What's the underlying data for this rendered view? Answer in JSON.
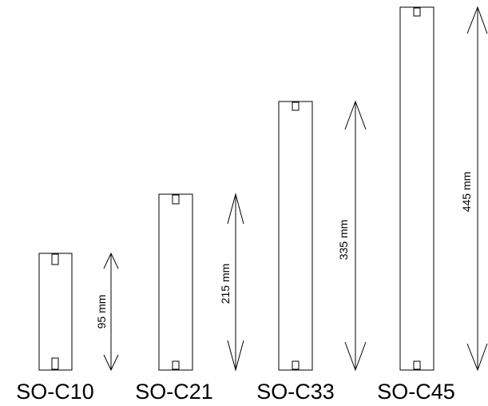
{
  "modules": [
    {
      "name": "SO-C10",
      "height_label": "95 mm"
    },
    {
      "name": "SO-C21",
      "height_label": "215 mm"
    },
    {
      "name": "SO-C33",
      "height_label": "335 mm"
    },
    {
      "name": "SO-C45",
      "height_label": "445 mm"
    }
  ]
}
